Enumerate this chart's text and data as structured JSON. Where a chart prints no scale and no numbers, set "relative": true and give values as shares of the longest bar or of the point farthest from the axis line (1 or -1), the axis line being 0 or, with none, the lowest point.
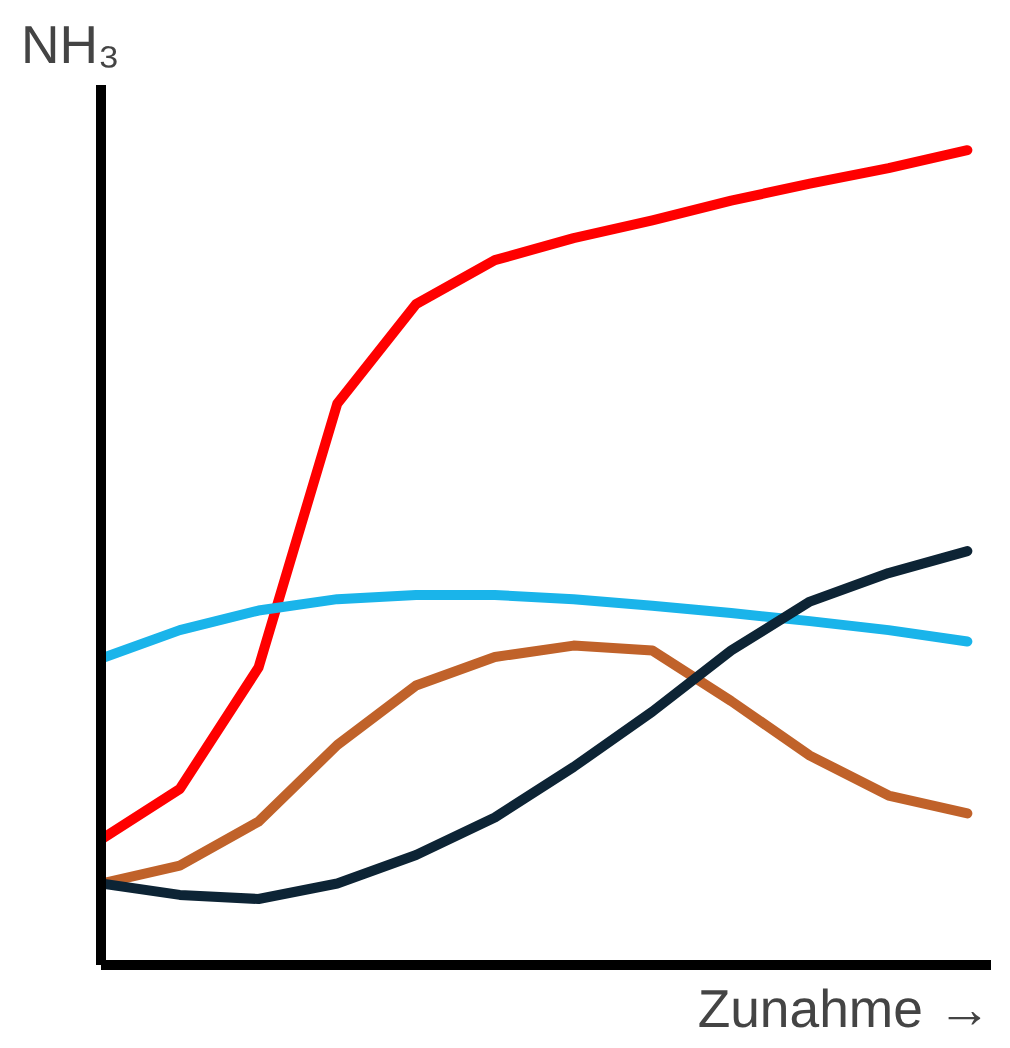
{
  "chart_data": {
    "type": "line",
    "relative": true,
    "ylabel": "NH₃",
    "xlabel": "Zunahme →",
    "line_style": "solid",
    "categories": [
      null,
      null,
      null,
      null,
      null,
      null,
      null,
      null,
      null,
      null,
      null,
      null
    ],
    "series": [
      {
        "color": "#ff0000",
        "values": [
          0.154,
          0.216,
          0.365,
          0.689,
          0.811,
          0.865,
          0.892,
          0.914,
          0.938,
          0.959,
          0.978,
          1.0
        ]
      },
      {
        "color": "#1ab4ea",
        "values": [
          0.376,
          0.411,
          0.435,
          0.449,
          0.454,
          0.454,
          0.449,
          0.441,
          0.432,
          0.422,
          0.411,
          0.397
        ]
      },
      {
        "color": "#c0622a",
        "values": [
          0.1,
          0.122,
          0.176,
          0.27,
          0.343,
          0.378,
          0.392,
          0.386,
          0.324,
          0.257,
          0.208,
          0.186
        ]
      },
      {
        "color": "#0d2435",
        "values": [
          0.1,
          0.086,
          0.081,
          0.1,
          0.135,
          0.181,
          0.243,
          0.311,
          0.386,
          0.446,
          0.481,
          0.508
        ]
      }
    ]
  }
}
